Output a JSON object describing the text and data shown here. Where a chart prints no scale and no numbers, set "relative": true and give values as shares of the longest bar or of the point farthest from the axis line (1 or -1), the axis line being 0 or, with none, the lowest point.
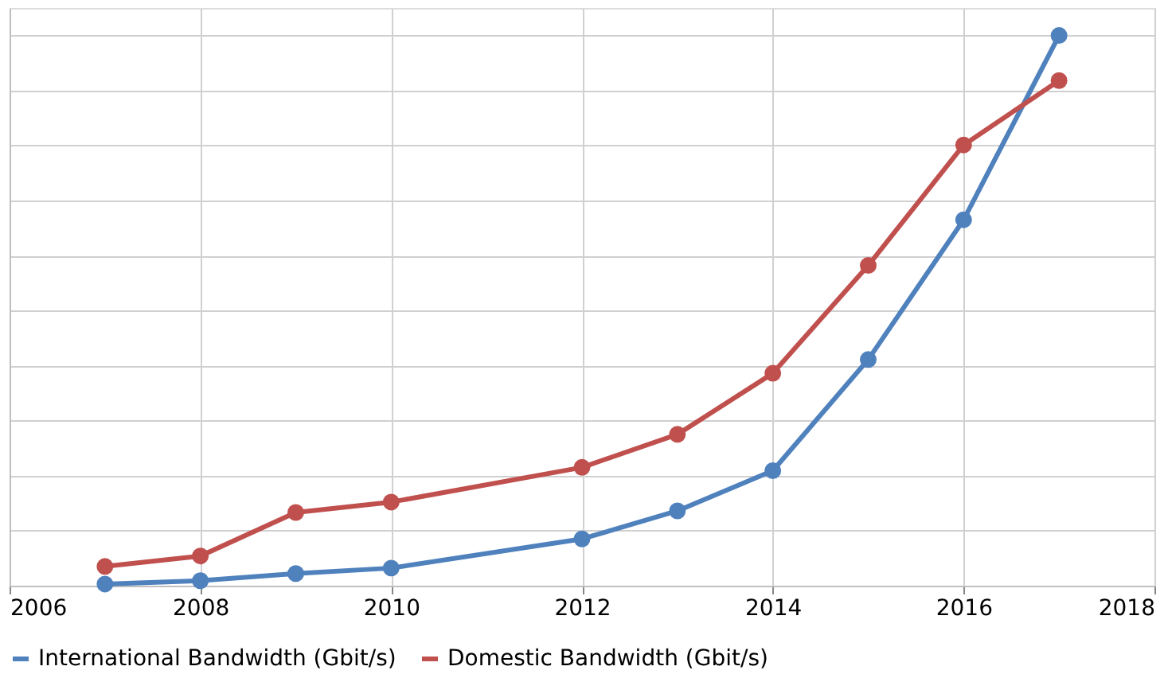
{
  "chart_data": {
    "type": "line",
    "relative": true,
    "x": [
      2007,
      2008,
      2009,
      2010,
      2012,
      2013,
      2014,
      2015,
      2016,
      2017
    ],
    "xlim": [
      2006,
      2018
    ],
    "xticks": [
      2006,
      2008,
      2010,
      2012,
      2014,
      2016,
      2018
    ],
    "series": [
      {
        "name": "International Bandwidth (Gbit/s)",
        "color": "#4f81bd",
        "values": [
          0.003,
          0.009,
          0.022,
          0.032,
          0.085,
          0.136,
          0.209,
          0.411,
          0.665,
          1
        ]
      },
      {
        "name": "Domestic Bandwidth (Gbit/s)",
        "color": "#c0504d",
        "values": [
          0.035,
          0.054,
          0.133,
          0.152,
          0.215,
          0.275,
          0.386,
          0.582,
          0.801,
          0.918
        ]
      }
    ],
    "grid": true,
    "legend": "bottom",
    "marker": "circle",
    "line_style": "solid"
  }
}
